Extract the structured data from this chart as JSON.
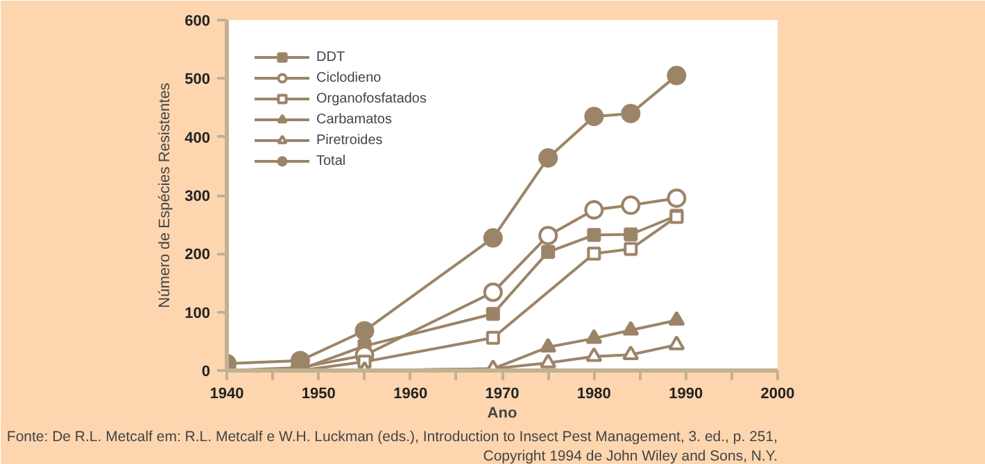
{
  "chart_data": {
    "type": "line",
    "xlabel": "Ano",
    "ylabel": "Número de Espécies Resistentes",
    "x": [
      1940,
      1948,
      1955,
      1969,
      1975,
      1980,
      1984,
      1989
    ],
    "series": [
      {
        "name": "DDT",
        "color": "#9c8468",
        "marker": "square_filled",
        "x": [
          1948,
          1955,
          1969,
          1975,
          1980,
          1984,
          1989
        ],
        "values": [
          2,
          42,
          97,
          203,
          232,
          233,
          265
        ]
      },
      {
        "name": "Ciclodieno",
        "color": "#9c8468",
        "marker": "circle_open",
        "values": [
          0,
          5,
          26,
          134,
          231,
          275,
          283,
          295
        ]
      },
      {
        "name": "Organofosfatados",
        "color": "#9c8468",
        "marker": "square_open",
        "x": [
          1948,
          1955,
          1969,
          1980,
          1984,
          1989
        ],
        "values": [
          0,
          15,
          56,
          200,
          208,
          263
        ]
      },
      {
        "name": "Carbamatos",
        "color": "#9c8468",
        "marker": "triangle_filled",
        "x": [
          1948,
          1955,
          1969,
          1975,
          1980,
          1984,
          1989
        ],
        "values": [
          0,
          0,
          3,
          40,
          55,
          69,
          86
        ]
      },
      {
        "name": "Piretroides",
        "color": "#9c8468",
        "marker": "triangle_open",
        "x": [
          1948,
          1955,
          1969,
          1975,
          1980,
          1984,
          1989
        ],
        "values": [
          0,
          0,
          3,
          13,
          24,
          27,
          44
        ]
      },
      {
        "name": "Total",
        "color": "#9c8468",
        "marker": "circle_filled",
        "values": [
          12,
          17,
          68,
          227,
          364,
          435,
          440,
          505
        ]
      }
    ],
    "xlim": [
      1940,
      2000
    ],
    "xticks": [
      1940,
      {
        "value": 1945,
        "label": null
      },
      1950,
      {
        "value": 1955,
        "label": null
      },
      1960,
      {
        "value": 1965,
        "label": null
      },
      1970,
      {
        "value": 1975,
        "label": null
      },
      1980,
      {
        "value": 1985,
        "label": null
      },
      1990,
      {
        "value": 1995,
        "label": null
      },
      2000
    ],
    "ylim": [
      0,
      600
    ],
    "yticks": [
      0,
      100,
      200,
      300,
      400,
      500,
      600
    ],
    "grid": false,
    "legend": "top left",
    "line_style": "solid",
    "annotations": [
      "Fonte: De R.L. Metcalf em: R.L. Metcalf e W.H. Luckman (eds.), Introduction to Insect Pest Management, 3. ed., p. 251,",
      "Copyright 1994 de John Wiley and Sons, N.Y."
    ]
  }
}
